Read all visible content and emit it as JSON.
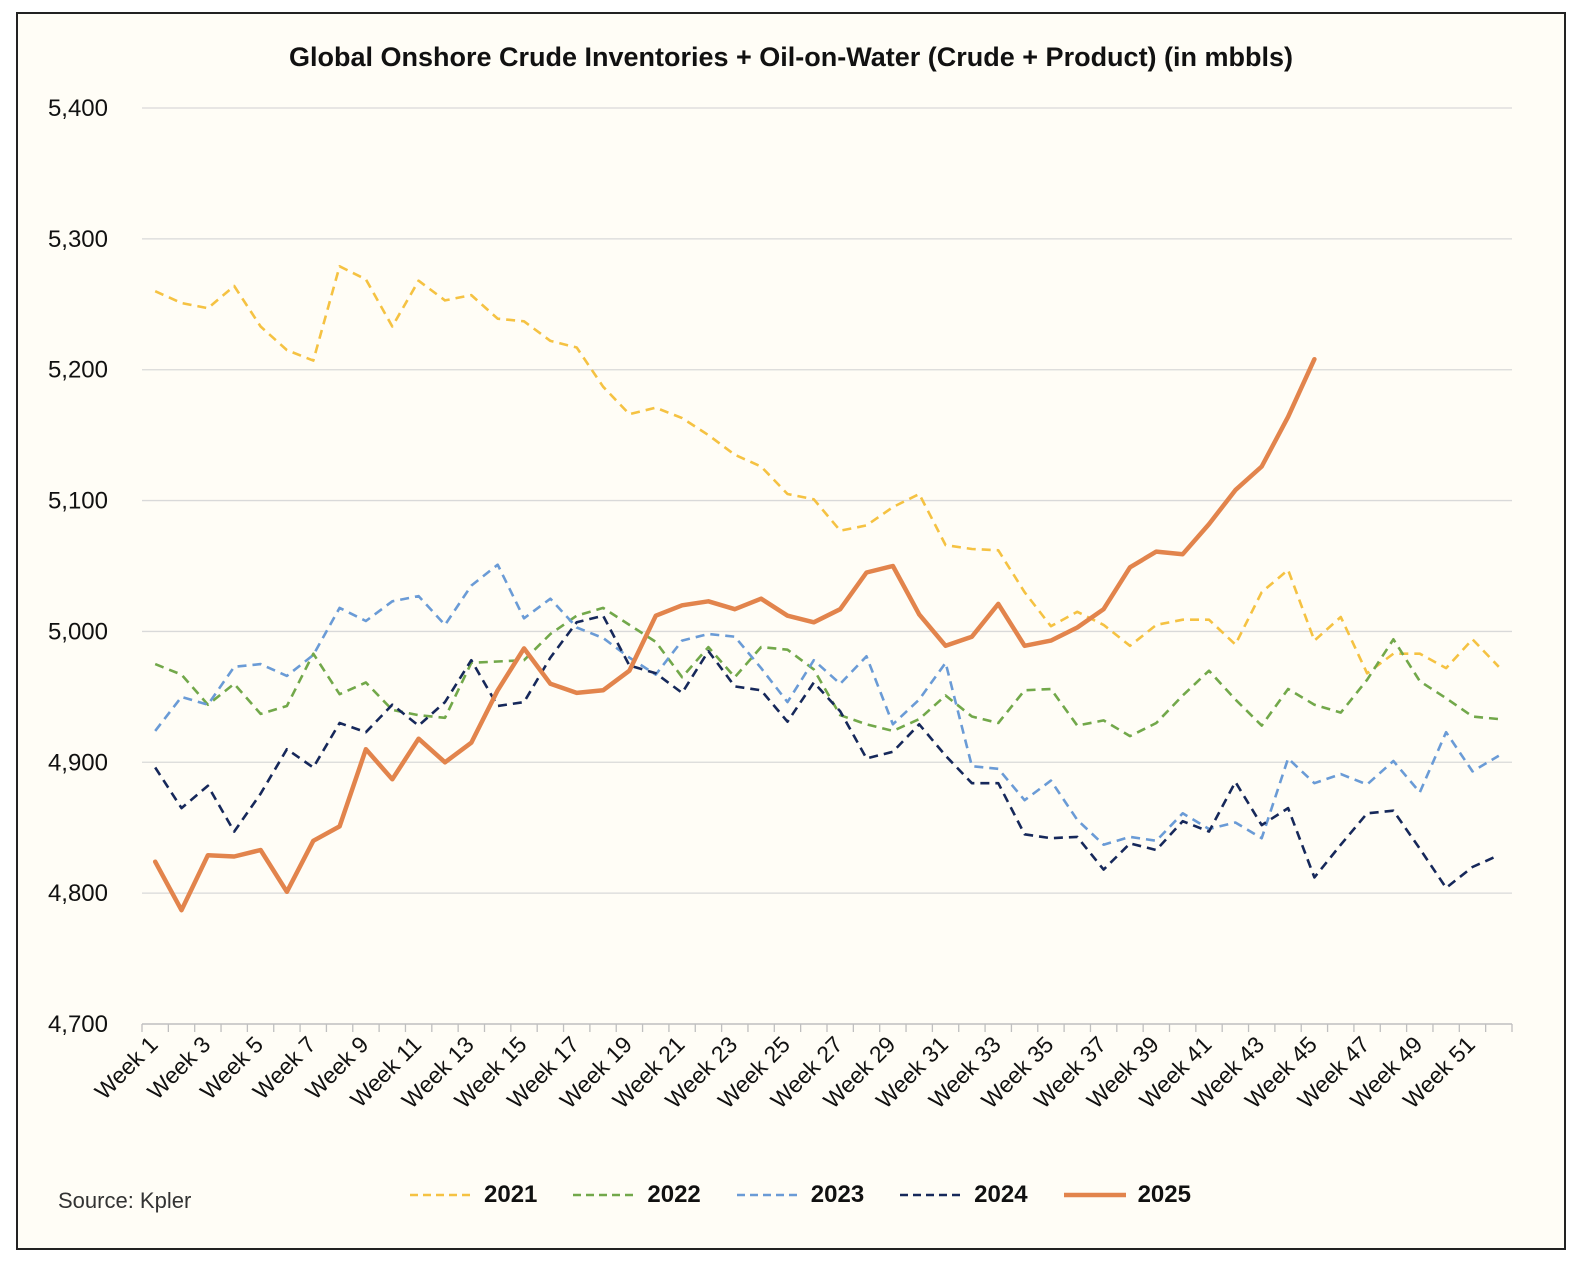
{
  "source": "Source: Kpler",
  "colors": {
    "2021": "#f5c242",
    "2022": "#72a84a",
    "2023": "#6a9bd6",
    "2024": "#16285a",
    "2025": "#e2844c",
    "gridline": "#d9d9d9",
    "axis": "#bfbfbf"
  },
  "chart_data": {
    "type": "line",
    "title": "Global Onshore Crude Inventories + Oil-on-Water (Crude + Product) (in mbbls)",
    "xlabel": "",
    "ylabel": "",
    "ylim": [
      4700,
      5400
    ],
    "yticks": [
      4700,
      4800,
      4900,
      5000,
      5100,
      5200,
      5300,
      5400
    ],
    "ytick_labels": [
      "4,700",
      "4,800",
      "4,900",
      "5,000",
      "5,100",
      "5,200",
      "5,300",
      "5,400"
    ],
    "grid": true,
    "legend_position": "bottom",
    "x_tick_labels": [
      "Week 1",
      "Week 3",
      "Week 5",
      "Week 7",
      "Week 9",
      "Week 11",
      "Week 13",
      "Week 15",
      "Week 17",
      "Week 19",
      "Week 21",
      "Week 23",
      "Week 25",
      "Week 27",
      "Week 29",
      "Week 31",
      "Week 33",
      "Week 35",
      "Week 37",
      "Week 39",
      "Week 41",
      "Week 43",
      "Week 45",
      "Week 47",
      "Week 49",
      "Week 51"
    ],
    "num_weeks": 52,
    "series": [
      {
        "name": "2021",
        "style": "dashed",
        "values": [
          5260,
          5251,
          5247,
          5264,
          5233,
          5215,
          5207,
          5279,
          5269,
          5233,
          5268,
          5253,
          5257,
          5239,
          5237,
          5222,
          5217,
          5187,
          5166,
          5171,
          5163,
          5150,
          5135,
          5126,
          5105,
          5101,
          5077,
          5081,
          5095,
          5105,
          5066,
          5063,
          5062,
          5030,
          5004,
          5015,
          5005,
          4989,
          5005,
          5009,
          5009,
          4990,
          5030,
          5047,
          4993,
          5011,
          4968,
          4983,
          4983,
          4972,
          4994,
          4973
        ]
      },
      {
        "name": "2022",
        "style": "dashed",
        "values": [
          4975,
          4967,
          4944,
          4960,
          4937,
          4943,
          4983,
          4952,
          4961,
          4940,
          4936,
          4934,
          4976,
          4977,
          4978,
          4998,
          5012,
          5018,
          5005,
          4992,
          4965,
          4988,
          4965,
          4988,
          4986,
          4971,
          4936,
          4929,
          4924,
          4933,
          4951,
          4935,
          4930,
          4955,
          4956,
          4928,
          4932,
          4920,
          4930,
          4951,
          4970,
          4948,
          4928,
          4956,
          4944,
          4938,
          4963,
          4994,
          4962,
          4949,
          4935,
          4933
        ]
      },
      {
        "name": "2023",
        "style": "dashed",
        "values": [
          4924,
          4950,
          4944,
          4973,
          4975,
          4966,
          4982,
          5018,
          5008,
          5023,
          5027,
          5005,
          5035,
          5051,
          5010,
          5025,
          5003,
          4995,
          4980,
          4967,
          4993,
          4998,
          4996,
          4972,
          4946,
          4978,
          4960,
          4981,
          4929,
          4948,
          4976,
          4897,
          4895,
          4871,
          4886,
          4856,
          4837,
          4843,
          4840,
          4861,
          4849,
          4854,
          4842,
          4903,
          4884,
          4891,
          4883,
          4901,
          4877,
          4923,
          4893,
          4905
        ]
      },
      {
        "name": "2024",
        "style": "dashed",
        "values": [
          4896,
          4865,
          4882,
          4847,
          4876,
          4910,
          4896,
          4930,
          4923,
          4944,
          4928,
          4946,
          4978,
          4943,
          4946,
          4980,
          5007,
          5012,
          4974,
          4968,
          4953,
          4985,
          4958,
          4955,
          4931,
          4961,
          4939,
          4903,
          4908,
          4929,
          4905,
          4884,
          4884,
          4845,
          4842,
          4843,
          4818,
          4838,
          4833,
          4855,
          4847,
          4885,
          4852,
          4865,
          4812,
          4837,
          4861,
          4863,
          4834,
          4804,
          4820,
          4829
        ]
      },
      {
        "name": "2025",
        "style": "solid",
        "values": [
          4824,
          4787,
          4829,
          4828,
          4833,
          4801,
          4840,
          4851,
          4910,
          4887,
          4918,
          4900,
          4915,
          4955,
          4987,
          4960,
          4953,
          4955,
          4970,
          5012,
          5020,
          5023,
          5017,
          5025,
          5012,
          5007,
          5017,
          5045,
          5050,
          5013,
          4989,
          4996,
          5021,
          4989,
          4993,
          5003,
          5017,
          5049,
          5061,
          5059,
          5082,
          5108,
          5126,
          5164,
          5208
        ]
      }
    ]
  }
}
